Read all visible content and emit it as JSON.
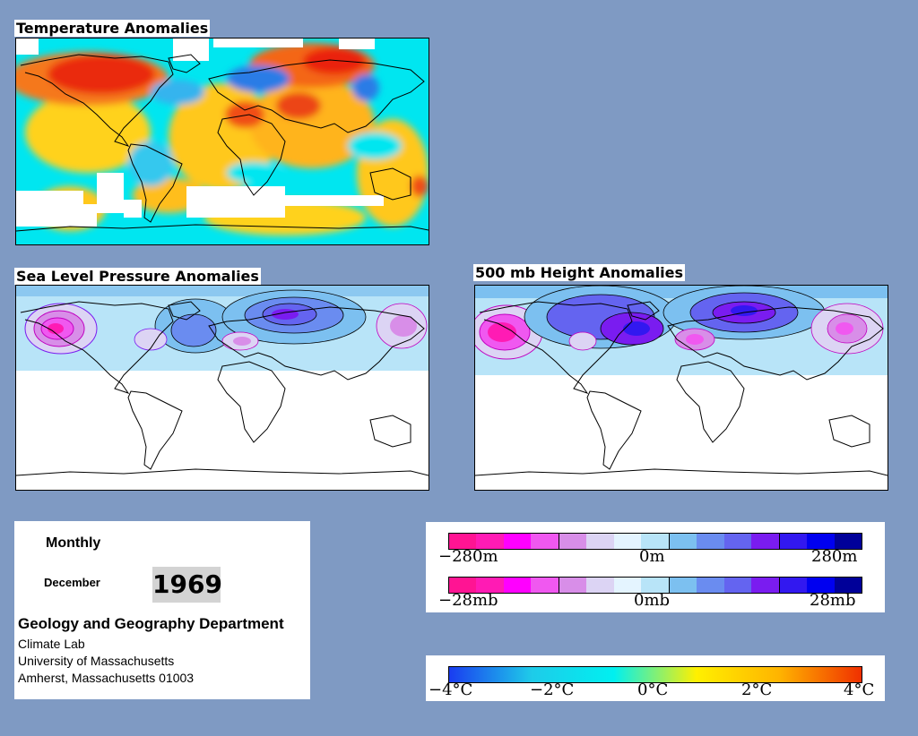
{
  "panels": {
    "temperature_title": "Temperature Anomalies",
    "slp_title": "Sea Level Pressure Anomalies",
    "height_title": "500 mb Height Anomalies"
  },
  "info": {
    "period": "Monthly",
    "month": "December",
    "year": "1969",
    "department": "Geology and Geography Department",
    "line1": "Climate Lab",
    "line2": "University of Massachusetts",
    "line3": "Amherst, Massachusetts 01003"
  },
  "height_legend": {
    "left": "−280m",
    "center": "0m",
    "right": "280m",
    "colors": [
      "#ff1493",
      "#ff1bb4",
      "#ff00ff",
      "#f058f0",
      "#d88ee8",
      "#dcd4f4",
      "#e4f4ff",
      "#b8e4f8",
      "#7cc0f0",
      "#6a8cf0",
      "#6464f0",
      "#7a1cf0",
      "#3218f0",
      "#0000f0",
      "#000099"
    ]
  },
  "slp_legend": {
    "left": "−28mb",
    "center": "0mb",
    "right": "28mb",
    "colors": [
      "#ff1493",
      "#ff1bb4",
      "#ff00ff",
      "#f058f0",
      "#d88ee8",
      "#dcd4f4",
      "#e4f4ff",
      "#b8e4f8",
      "#7cc0f0",
      "#6a8cf0",
      "#6464f0",
      "#7a1cf0",
      "#3218f0",
      "#0000f0",
      "#000099"
    ]
  },
  "temp_legend": {
    "labels": [
      "−4°C",
      "−2°C",
      "0°C",
      "2°C",
      "4°C"
    ],
    "gradient": [
      "#1a3cf0",
      "#1ecbe9",
      "#00f0f0",
      "#fff000",
      "#ffb400",
      "#f03000"
    ]
  },
  "colors": {
    "background": "#7f9ac3",
    "warm": "#e44a1a",
    "cold": "#2c7ce6",
    "high_pressure": "#4a3cd8",
    "low_pressure": "#ff44c0"
  }
}
